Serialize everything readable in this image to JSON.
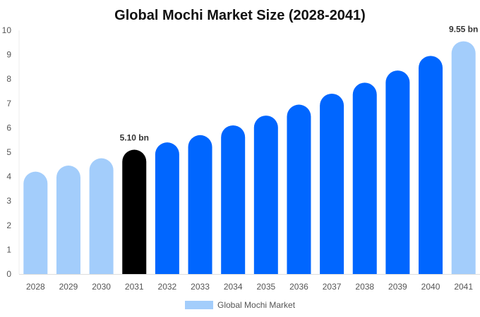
{
  "chart_data": {
    "type": "bar",
    "title": "Global Mochi Market Size (2028-2041)",
    "xlabel": "",
    "ylabel": "",
    "ylim": [
      0,
      10
    ],
    "yticks": [
      "0",
      "1",
      "2",
      "3",
      "4",
      "5",
      "6",
      "7",
      "8",
      "9",
      "10"
    ],
    "categories": [
      "2028",
      "2029",
      "2030",
      "2031",
      "2032",
      "2033",
      "2034",
      "2035",
      "2036",
      "2037",
      "2038",
      "2039",
      "2040",
      "2041"
    ],
    "series": [
      {
        "name": "Global Mochi Market",
        "values": [
          4.2,
          4.45,
          4.75,
          5.1,
          5.4,
          5.7,
          6.1,
          6.5,
          6.95,
          7.4,
          7.85,
          8.35,
          8.95,
          9.55
        ],
        "colors": [
          "#a3cdfb",
          "#a3cdfb",
          "#a3cdfb",
          "#000000",
          "#0066ff",
          "#0066ff",
          "#0066ff",
          "#0066ff",
          "#0066ff",
          "#0066ff",
          "#0066ff",
          "#0066ff",
          "#0066ff",
          "#a3cdfb"
        ]
      }
    ],
    "data_labels": [
      {
        "category": "2031",
        "text": "5.10 bn"
      },
      {
        "category": "2041",
        "text": "9.55 bn"
      }
    ],
    "grid": false,
    "legend": {
      "position": "bottom",
      "color": "#a3cdfb"
    }
  }
}
